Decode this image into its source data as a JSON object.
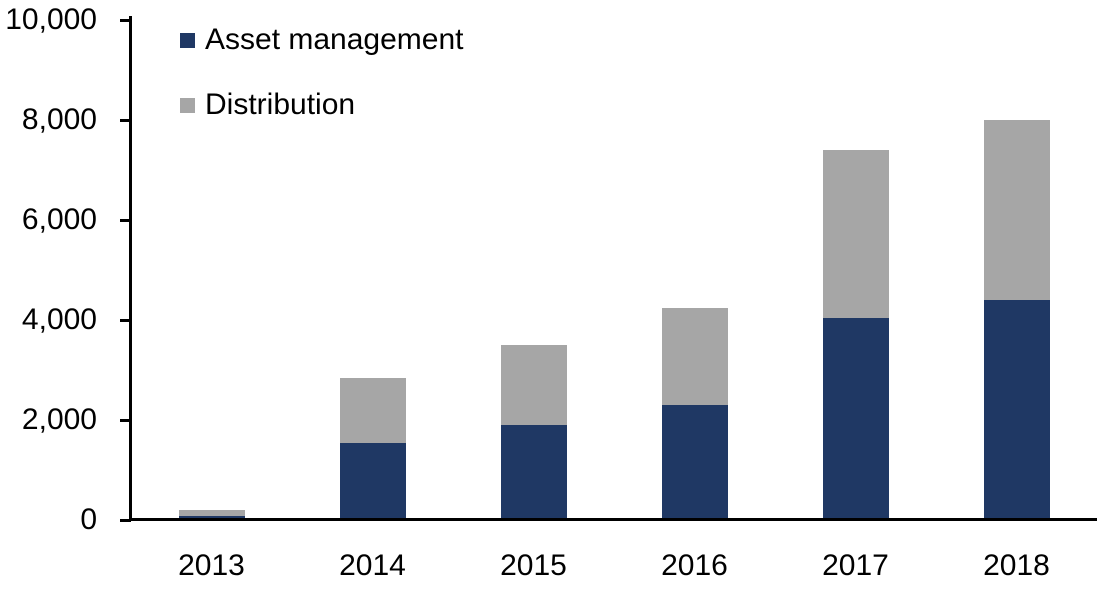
{
  "chart_data": {
    "type": "bar",
    "stacked": true,
    "title": "",
    "xlabel": "",
    "ylabel": "",
    "categories": [
      "2013",
      "2014",
      "2015",
      "2016",
      "2017",
      "2018"
    ],
    "series": [
      {
        "name": "Asset management",
        "color": "#1F3864",
        "values": [
          90,
          1550,
          1900,
          2300,
          4050,
          4400
        ]
      },
      {
        "name": "Distribution",
        "color": "#A6A6A6",
        "values": [
          110,
          1300,
          1600,
          1950,
          3350,
          3600
        ]
      }
    ],
    "stacked_totals": [
      200,
      2850,
      3500,
      4250,
      7400,
      8000
    ],
    "ylim": [
      0,
      10000
    ],
    "yticks": [
      {
        "value": 0,
        "label": "0"
      },
      {
        "value": 2000,
        "label": "2,000"
      },
      {
        "value": 4000,
        "label": "4,000"
      },
      {
        "value": 6000,
        "label": "6,000"
      },
      {
        "value": 8000,
        "label": "8,000"
      },
      {
        "value": 10000,
        "label": "10,000"
      }
    ],
    "grid": false,
    "legend_position": "top-left-inside",
    "axis_color": "#000000",
    "text_color": "#000000",
    "background_color": "#FFFFFF"
  }
}
